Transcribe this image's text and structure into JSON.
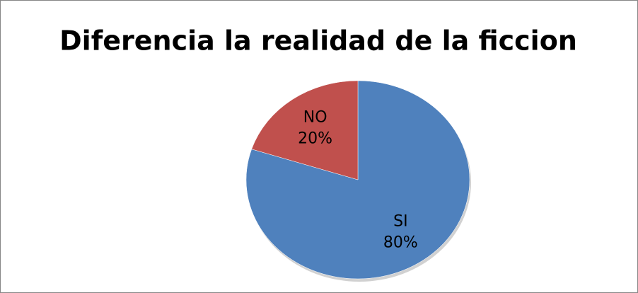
{
  "chart_data": {
    "type": "pie",
    "title": "Diferencia la realidad de la ficcion",
    "categories": [
      "SI",
      "NO"
    ],
    "values": [
      80,
      20
    ],
    "value_labels": [
      "80%",
      "20%"
    ],
    "colors": [
      "#4f81bd",
      "#c0504d"
    ]
  }
}
